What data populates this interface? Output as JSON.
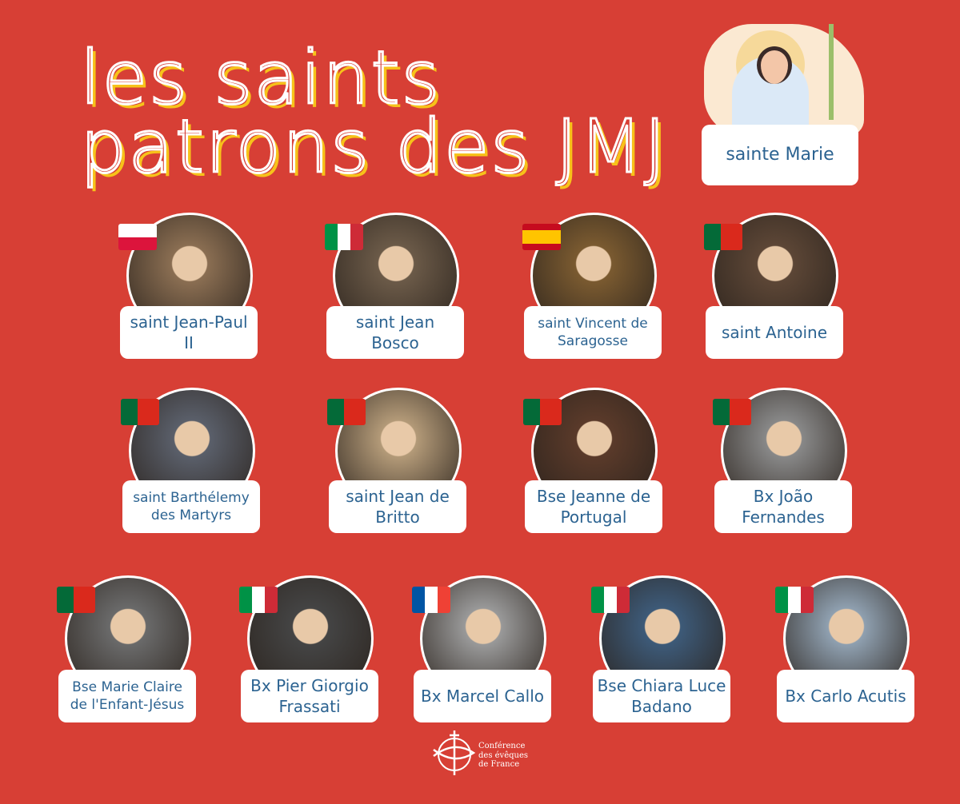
{
  "title": {
    "line1": "les saints",
    "line2": "patrons des JMJ"
  },
  "featured": {
    "label": "sainte Marie"
  },
  "saints": [
    {
      "label": "saint Jean-Paul II",
      "flag": "poland"
    },
    {
      "label": "saint Jean Bosco",
      "flag": "italy"
    },
    {
      "label": "saint Vincent de Saragosse",
      "flag": "spain"
    },
    {
      "label": "saint Antoine",
      "flag": "portugal"
    },
    {
      "label": "saint Barthélemy des Martyrs",
      "flag": "portugal"
    },
    {
      "label": "saint Jean de Britto",
      "flag": "portugal"
    },
    {
      "label": "Bse Jeanne de Portugal",
      "flag": "portugal"
    },
    {
      "label": "Bx João Fernandes",
      "flag": "portugal"
    },
    {
      "label": "Bse Marie Claire de l'Enfant-Jésus",
      "flag": "portugal"
    },
    {
      "label": "Bx Pier Giorgio Frassati",
      "flag": "italy"
    },
    {
      "label": "Bx Marcel Callo",
      "flag": "france"
    },
    {
      "label": "Bse Chiara Luce Badano",
      "flag": "italy"
    },
    {
      "label": "Bx Carlo Acutis",
      "flag": "italy"
    }
  ],
  "logo": {
    "line1": "Conférence",
    "line2": "des évêques",
    "line3": "de France"
  },
  "colors": {
    "background": "#d73f35",
    "label_text": "#2c6391",
    "title_shadow": "#f7c21a"
  }
}
